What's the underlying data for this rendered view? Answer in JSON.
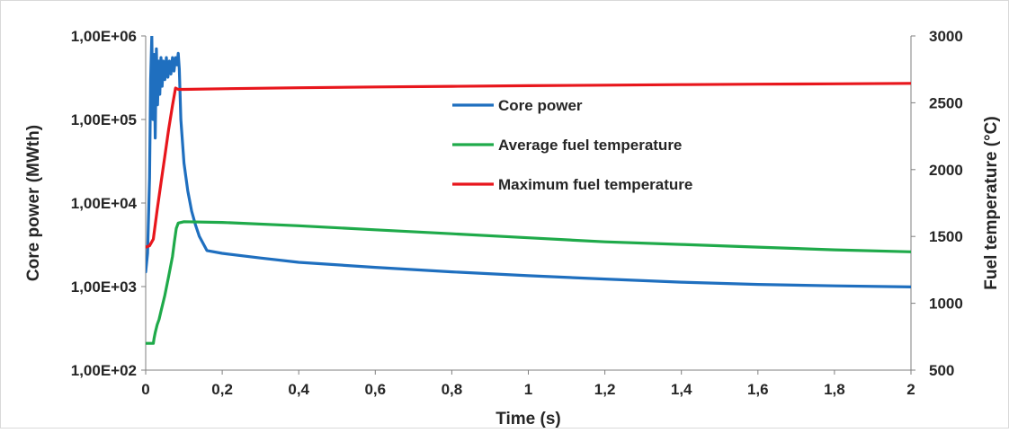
{
  "chart_data": {
    "type": "line",
    "title": "",
    "xlabel": "Time (s)",
    "ylabel_left": "Core power (MWth)",
    "ylabel_right": "Fuel temperature (°C)",
    "x_range": [
      0,
      2
    ],
    "x_ticks": [
      0,
      0.2,
      0.4,
      0.6,
      0.8,
      1,
      1.2,
      1.4,
      1.6,
      1.8,
      2
    ],
    "x_tick_labels": [
      "0",
      "0,2",
      "0,4",
      "0,6",
      "0,8",
      "1",
      "1,2",
      "1,4",
      "1,6",
      "1,8",
      "2"
    ],
    "y_left_scale": "log",
    "y_left_range": [
      100,
      1000000
    ],
    "y_left_ticks": [
      100,
      1000,
      10000,
      100000,
      1000000
    ],
    "y_left_tick_labels": [
      "1,00E+02",
      "1,00E+03",
      "1,00E+04",
      "1,00E+05",
      "1,00E+06"
    ],
    "y_right_range": [
      500,
      3000
    ],
    "y_right_ticks": [
      500,
      1000,
      1500,
      2000,
      2500,
      3000
    ],
    "y_right_tick_labels": [
      "500",
      "1000",
      "1500",
      "2000",
      "2500",
      "3000"
    ],
    "grid": false,
    "legend_position": "upper-center",
    "series": [
      {
        "name": "Core power",
        "axis": "left",
        "color": "#1f6fbf",
        "x": [
          0,
          0.005,
          0.01,
          0.013,
          0.016,
          0.019,
          0.022,
          0.025,
          0.028,
          0.031,
          0.034,
          0.037,
          0.04,
          0.043,
          0.046,
          0.05,
          0.054,
          0.058,
          0.062,
          0.066,
          0.07,
          0.074,
          0.078,
          0.082,
          0.085,
          0.088,
          0.092,
          0.1,
          0.11,
          0.12,
          0.13,
          0.14,
          0.16,
          0.2,
          0.3,
          0.4,
          0.6,
          0.8,
          1.0,
          1.2,
          1.4,
          1.6,
          1.8,
          2.0
        ],
        "y": [
          1500,
          2500,
          20000,
          300000,
          1000000,
          100000,
          600000,
          60000,
          700000,
          150000,
          500000,
          200000,
          550000,
          250000,
          500000,
          300000,
          550000,
          320000,
          500000,
          350000,
          550000,
          380000,
          550000,
          450000,
          620000,
          400000,
          100000,
          30000,
          14000,
          8000,
          5500,
          4000,
          2700,
          2500,
          2200,
          1950,
          1700,
          1500,
          1350,
          1230,
          1130,
          1060,
          1020,
          990
        ]
      },
      {
        "name": "Average fuel temperature",
        "axis": "right",
        "color": "#1faa4a",
        "x": [
          0,
          0.02,
          0.022,
          0.025,
          0.03,
          0.035,
          0.04,
          0.05,
          0.06,
          0.07,
          0.075,
          0.08,
          0.085,
          0.1,
          0.2,
          0.4,
          0.6,
          0.8,
          1.0,
          1.2,
          1.4,
          1.6,
          1.8,
          2.0
        ],
        "y": [
          700,
          700,
          740,
          780,
          840,
          880,
          940,
          1060,
          1200,
          1350,
          1460,
          1560,
          1600,
          1610,
          1605,
          1580,
          1550,
          1520,
          1490,
          1460,
          1440,
          1420,
          1400,
          1385
        ]
      },
      {
        "name": "Maximum fuel temperature",
        "axis": "right",
        "color": "#e8161c",
        "x": [
          0,
          0.01,
          0.02,
          0.03,
          0.04,
          0.05,
          0.06,
          0.07,
          0.078,
          0.085,
          0.09,
          0.1,
          0.2,
          0.4,
          0.6,
          0.8,
          1.0,
          1.2,
          1.4,
          1.6,
          1.8,
          2.0
        ],
        "y": [
          1420,
          1430,
          1480,
          1700,
          1900,
          2100,
          2300,
          2480,
          2610,
          2600,
          2600,
          2600,
          2605,
          2612,
          2618,
          2623,
          2628,
          2632,
          2636,
          2639,
          2642,
          2645
        ]
      }
    ]
  }
}
